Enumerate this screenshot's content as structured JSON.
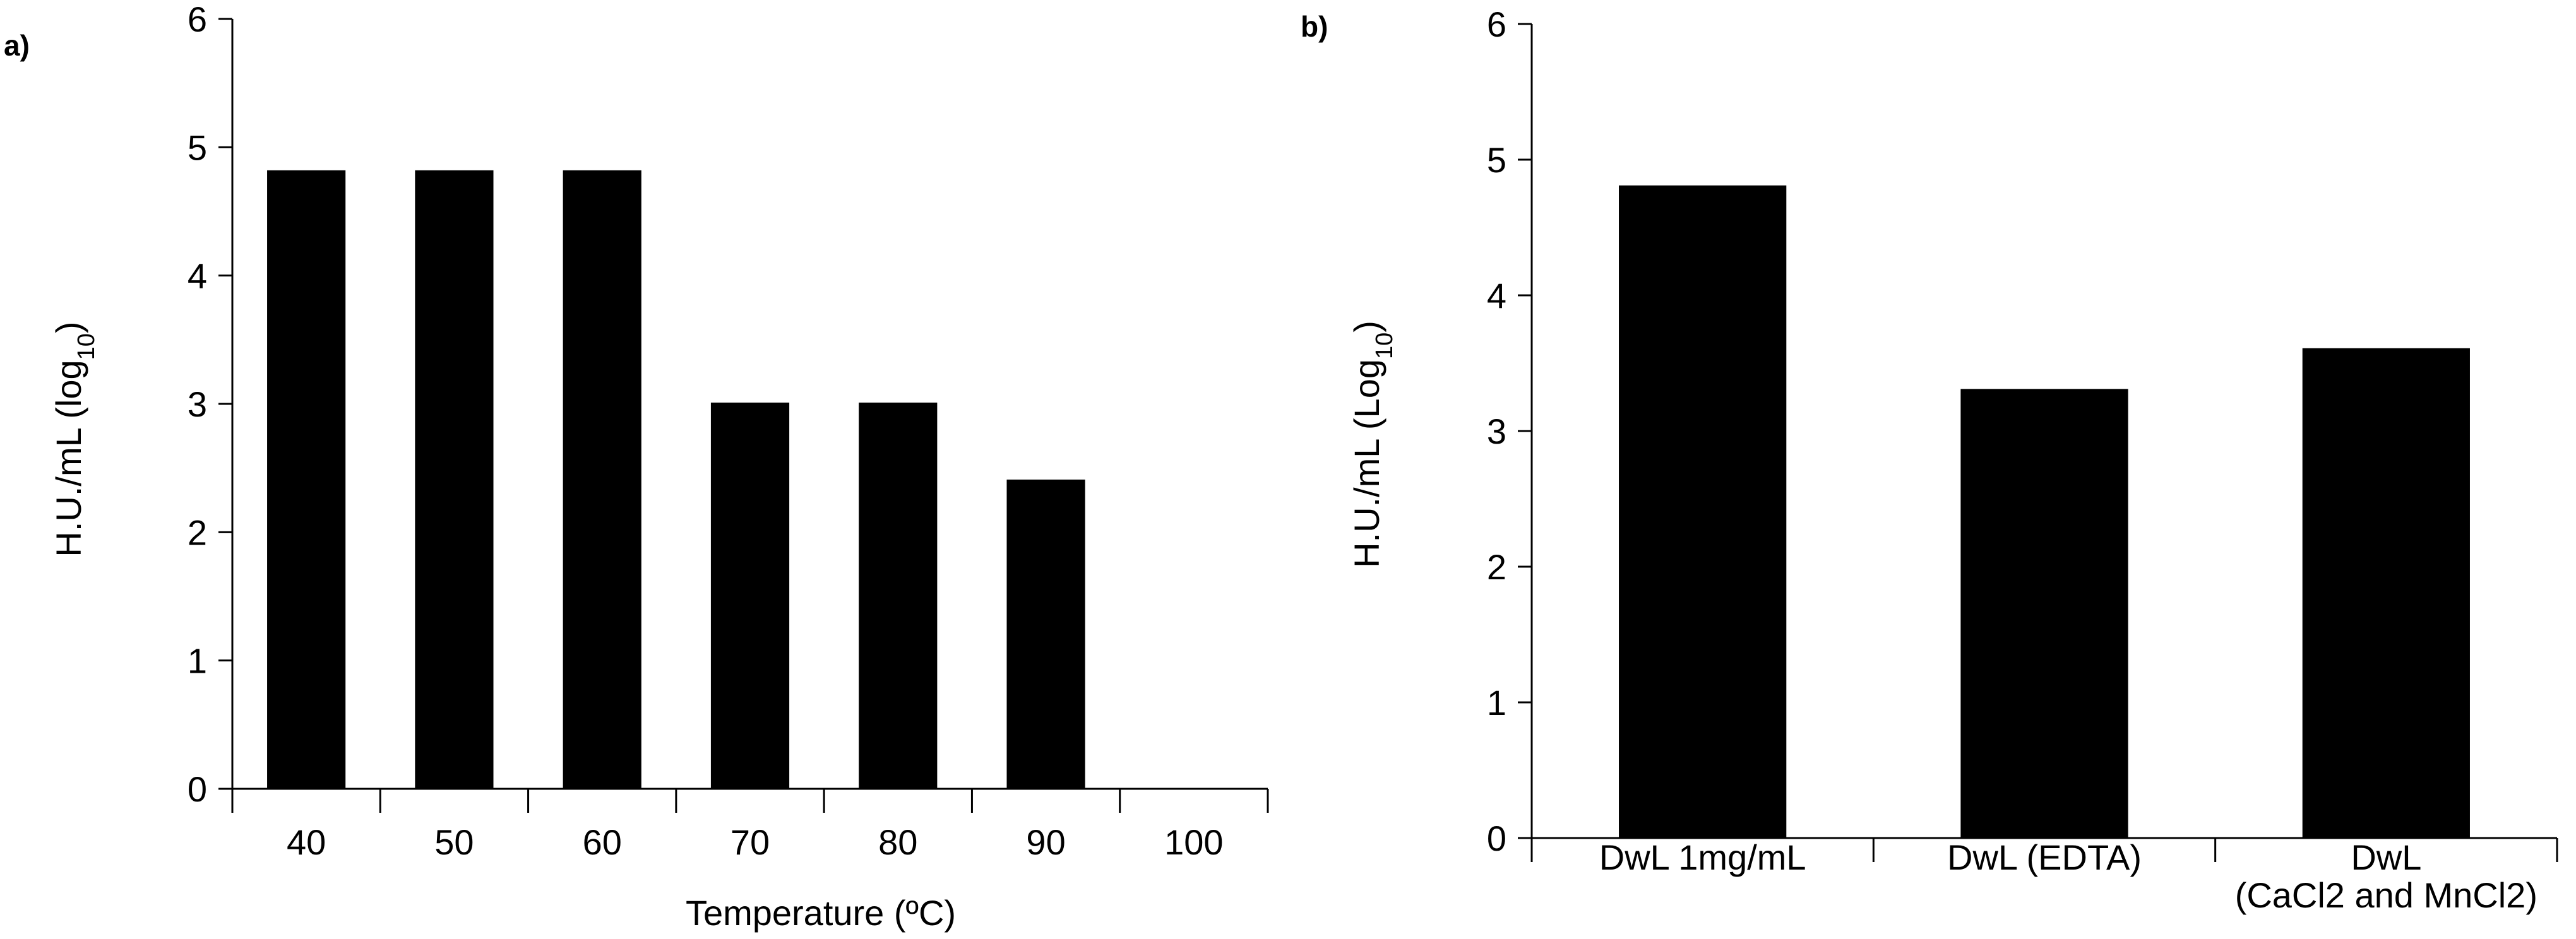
{
  "chart_data": [
    {
      "type": "bar",
      "panel": "a)",
      "title": "",
      "categories": [
        "40",
        "50",
        "60",
        "70",
        "80",
        "90",
        "100"
      ],
      "values": [
        4.82,
        4.82,
        4.82,
        3.01,
        3.01,
        2.41,
        0
      ],
      "xlabel": "Temperature (ºC)",
      "ylabel": "H.U./mL (log10)",
      "ylabel_parts": {
        "main": "H.U./mL (log",
        "sub": "10",
        "close": ")"
      },
      "ylim": [
        0,
        6
      ],
      "yticks": [
        "0",
        "1",
        "2",
        "3",
        "4",
        "5",
        "6"
      ],
      "grid": false,
      "bar_color": "#000000"
    },
    {
      "type": "bar",
      "panel": "b)",
      "title": "",
      "categories": [
        [
          "DwL 1mg/mL"
        ],
        [
          "DwL (EDTA)"
        ],
        [
          "DwL",
          "(CaCl2 and MnCl2)"
        ]
      ],
      "values": [
        4.81,
        3.31,
        3.61
      ],
      "xlabel": "",
      "ylabel": "H.U./mL (Log10)",
      "ylabel_parts": {
        "main": "H.U./mL (Log",
        "sub": "10",
        "close": ")"
      },
      "ylim": [
        0,
        6
      ],
      "yticks": [
        "0",
        "1",
        "2",
        "3",
        "4",
        "5",
        "6"
      ],
      "grid": false,
      "bar_color": "#000000"
    }
  ]
}
